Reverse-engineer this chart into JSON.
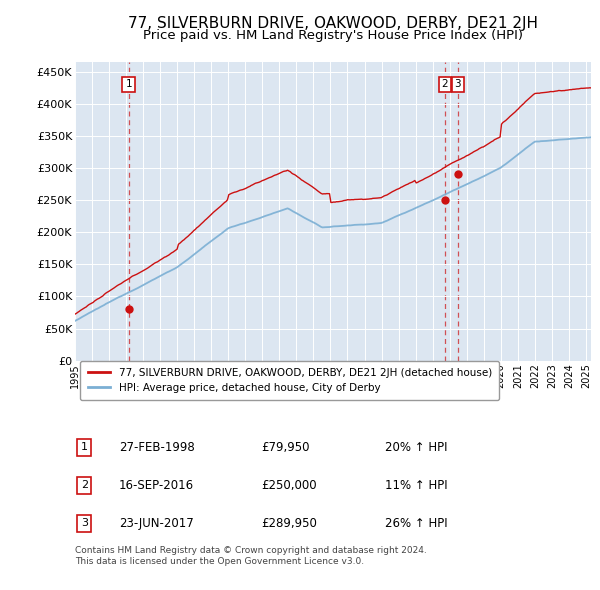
{
  "title": "77, SILVERBURN DRIVE, OAKWOOD, DERBY, DE21 2JH",
  "subtitle": "Price paid vs. HM Land Registry's House Price Index (HPI)",
  "title_fontsize": 11,
  "subtitle_fontsize": 9.5,
  "background_color": "#ffffff",
  "plot_bg_color": "#dce6f1",
  "grid_color": "#ffffff",
  "hpi_color": "#7bafd4",
  "price_color": "#cc1111",
  "dashed_line_color": "#cc1111",
  "x_start": 1995.0,
  "x_end": 2025.3,
  "y_ticks": [
    0,
    50000,
    100000,
    150000,
    200000,
    250000,
    300000,
    350000,
    400000,
    450000
  ],
  "y_labels": [
    "£0",
    "£50K",
    "£100K",
    "£150K",
    "£200K",
    "£250K",
    "£300K",
    "£350K",
    "£400K",
    "£450K"
  ],
  "sales": [
    {
      "label": "1",
      "date": 1998.15,
      "price": 79950
    },
    {
      "label": "2",
      "date": 2016.72,
      "price": 250000
    },
    {
      "label": "3",
      "date": 2017.48,
      "price": 289950
    }
  ],
  "legend_entries": [
    {
      "color": "#cc1111",
      "label": "77, SILVERBURN DRIVE, OAKWOOD, DERBY, DE21 2JH (detached house)"
    },
    {
      "color": "#7bafd4",
      "label": "HPI: Average price, detached house, City of Derby"
    }
  ],
  "table_rows": [
    {
      "num": "1",
      "date": "27-FEB-1998",
      "price": "£79,950",
      "change": "20% ↑ HPI"
    },
    {
      "num": "2",
      "date": "16-SEP-2016",
      "price": "£250,000",
      "change": "11% ↑ HPI"
    },
    {
      "num": "3",
      "date": "23-JUN-2017",
      "price": "£289,950",
      "change": "26% ↑ HPI"
    }
  ],
  "footnote": "Contains HM Land Registry data © Crown copyright and database right 2024.\nThis data is licensed under the Open Government Licence v3.0.",
  "x_tick_years": [
    1995,
    1996,
    1997,
    1998,
    1999,
    2000,
    2001,
    2002,
    2003,
    2004,
    2005,
    2006,
    2007,
    2008,
    2009,
    2010,
    2011,
    2012,
    2013,
    2014,
    2015,
    2016,
    2017,
    2018,
    2019,
    2020,
    2021,
    2022,
    2023,
    2024,
    2025
  ]
}
